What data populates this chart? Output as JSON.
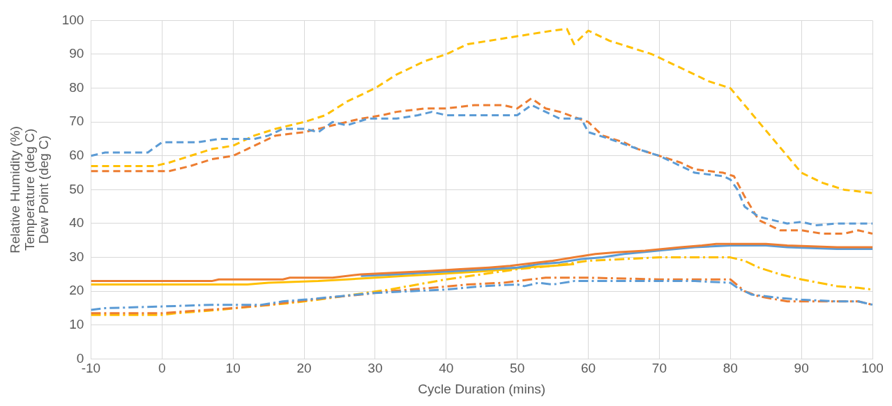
{
  "chart_data": {
    "type": "line",
    "xlabel": "Cycle Duration (mins)",
    "ylabel": "Relative Humidity (%)\nTemperature (deg C)\nDew Point (deg C)",
    "xlim": [
      -10,
      100
    ],
    "xticks": [
      -10,
      0,
      10,
      20,
      30,
      40,
      50,
      60,
      70,
      80,
      90,
      100
    ],
    "ylim": [
      0,
      100
    ],
    "yticks": [
      0,
      10,
      20,
      30,
      40,
      50,
      60,
      70,
      80,
      90,
      100
    ],
    "grid": true,
    "marker": "none",
    "series": [
      {
        "color": "#5b9bd5",
        "line_style": "dashed",
        "x": [
          -10,
          -8,
          -2,
          0,
          5,
          8,
          13,
          15,
          17,
          20,
          22,
          24,
          26,
          29,
          33,
          36,
          38,
          40,
          48,
          50,
          52,
          54,
          56,
          59,
          60,
          63,
          67,
          70,
          72,
          75,
          79,
          80,
          81,
          82,
          84,
          86,
          88,
          90,
          92,
          95,
          100
        ],
        "values": [
          60,
          61,
          61,
          64,
          64,
          65,
          65,
          66,
          68,
          68,
          67,
          70,
          69,
          71,
          71,
          72,
          73,
          72,
          72,
          72,
          75,
          73,
          71,
          71,
          67,
          65,
          62,
          60,
          58,
          55,
          54,
          53,
          50,
          45,
          42,
          41,
          40,
          40.5,
          39.5,
          40,
          40
        ]
      },
      {
        "color": "#ed7d31",
        "line_style": "dashed",
        "x": [
          -10,
          1,
          4,
          7,
          10,
          12,
          14,
          16,
          20,
          22,
          24,
          28,
          31,
          33,
          37,
          40,
          44,
          48,
          50,
          52,
          54,
          56,
          60,
          62,
          65,
          67,
          70,
          73,
          75,
          79,
          80.5,
          82,
          84,
          85,
          87,
          90,
          93,
          96,
          98,
          100
        ],
        "values": [
          55.5,
          55.5,
          57,
          59,
          60,
          62,
          64,
          66,
          67,
          68,
          69,
          71,
          72,
          73,
          74,
          74,
          75,
          75,
          74,
          77,
          74,
          73,
          70,
          66,
          64,
          62,
          60,
          58,
          56,
          55,
          54,
          48,
          41,
          40,
          38,
          38,
          37,
          37,
          38,
          37
        ]
      },
      {
        "color": "#ffc000",
        "line_style": "dashed",
        "x": [
          -10,
          -1,
          1,
          4,
          7,
          10,
          13,
          16,
          20,
          23,
          26,
          30,
          33,
          37,
          40,
          43,
          46,
          49,
          52,
          55,
          57,
          58,
          60,
          63,
          66,
          69,
          72,
          75,
          77,
          80,
          82,
          84,
          86,
          88,
          90,
          93,
          96,
          100
        ],
        "values": [
          57,
          57,
          58,
          60,
          62,
          63,
          66,
          68,
          70,
          72,
          76,
          80,
          84,
          88,
          90,
          93,
          94,
          95,
          96,
          97,
          97.5,
          93,
          97,
          94,
          92,
          90,
          87,
          84,
          82,
          80,
          75,
          70,
          65,
          60,
          55,
          52,
          50,
          49
        ]
      },
      {
        "color": "#ed7d31",
        "line_style": "solid",
        "x": [
          -10,
          7,
          8,
          17,
          18,
          24,
          28,
          33,
          38,
          42,
          46,
          49,
          51,
          55,
          58,
          61,
          64,
          68,
          73,
          76,
          78,
          85,
          88,
          95,
          100
        ],
        "values": [
          23,
          23,
          23.5,
          23.5,
          24,
          24,
          25,
          25.5,
          26,
          26.5,
          27,
          27.5,
          28,
          29,
          30,
          31,
          31.5,
          32,
          33,
          33.5,
          34,
          34,
          33.5,
          33,
          33
        ]
      },
      {
        "color": "#5b9bd5",
        "line_style": "solid",
        "x": [
          28,
          33,
          37,
          42,
          46,
          50,
          53,
          56,
          59,
          62,
          65,
          70,
          75,
          80,
          85,
          88,
          95,
          100
        ],
        "values": [
          24.5,
          25,
          25.5,
          26,
          26.5,
          27,
          28,
          28.5,
          29.5,
          30,
          31,
          32,
          33,
          33.5,
          33.5,
          33,
          32.5,
          32.5
        ]
      },
      {
        "color": "#ffc000",
        "line_style": "solid",
        "x": [
          -10,
          12,
          15,
          22,
          26,
          30,
          34,
          38,
          42,
          46,
          51,
          55,
          58
        ],
        "values": [
          22,
          22,
          22.5,
          23,
          23.5,
          24,
          24.5,
          25,
          25.5,
          26,
          27,
          27.5,
          28
        ]
      },
      {
        "color": "#5b9bd5",
        "line_style": "dashdot",
        "x": [
          -10,
          -8,
          0,
          7,
          14,
          17,
          20,
          25,
          30,
          35,
          40,
          45,
          50,
          51,
          53,
          55,
          58,
          65,
          75,
          80,
          81,
          83,
          87,
          90,
          95,
          98,
          100
        ],
        "values": [
          14.5,
          15,
          15.5,
          16,
          16,
          17,
          17.5,
          18.5,
          19.5,
          20,
          20.5,
          21.5,
          22,
          21.5,
          22.5,
          22,
          23,
          23,
          23,
          22.5,
          21,
          19,
          18,
          17.5,
          17,
          17,
          16
        ]
      },
      {
        "color": "#ed7d31",
        "line_style": "dashdot",
        "x": [
          -10,
          0,
          3,
          10,
          15,
          19,
          23,
          28,
          32,
          38,
          43,
          48,
          50,
          54,
          60,
          70,
          80,
          82,
          84,
          88,
          95,
          98,
          100
        ],
        "values": [
          13.5,
          13.5,
          14,
          15,
          16,
          17,
          18,
          19,
          20,
          21,
          22,
          22.5,
          23,
          24,
          24,
          23.5,
          23.5,
          20,
          18.5,
          17,
          17,
          17,
          16
        ]
      },
      {
        "color": "#ffc000",
        "line_style": "dashdot",
        "x": [
          -10,
          0,
          2,
          8,
          13,
          18,
          22,
          27,
          32,
          36,
          40,
          45,
          50,
          55,
          60,
          65,
          70,
          80,
          82,
          84,
          87,
          90,
          95,
          98,
          100
        ],
        "values": [
          13,
          13,
          13.5,
          14.5,
          15.5,
          16.5,
          17.5,
          19,
          20.5,
          22,
          23.5,
          25,
          26.5,
          27.5,
          29,
          29.5,
          30,
          30,
          29,
          27,
          25,
          23.5,
          21.5,
          21,
          20.5
        ]
      }
    ]
  }
}
